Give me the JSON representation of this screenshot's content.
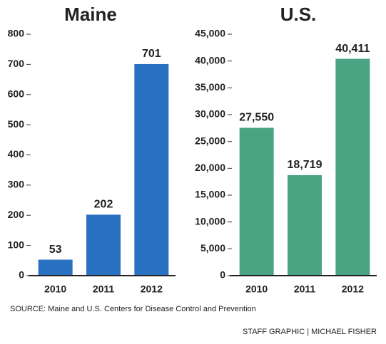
{
  "chart_data": [
    {
      "type": "bar",
      "title": "Maine",
      "categories": [
        "2010",
        "2011",
        "2012"
      ],
      "values": [
        53,
        202,
        701
      ],
      "color": "#2a72c1",
      "ylim": [
        0,
        800
      ],
      "yticks": [
        0,
        100,
        200,
        300,
        400,
        500,
        600,
        700,
        800
      ]
    },
    {
      "type": "bar",
      "title": "U.S.",
      "categories": [
        "2010",
        "2011",
        "2012"
      ],
      "values": [
        27550,
        18719,
        40411
      ],
      "value_labels": [
        "27,550",
        "18,719",
        "40,411"
      ],
      "color": "#4aa383",
      "ylim": [
        0,
        45000
      ],
      "yticks": [
        0,
        {
          "value": 5000,
          "label": "5,000"
        },
        {
          "value": 10000,
          "label": "10,000"
        },
        {
          "value": 15000,
          "label": "15,000"
        },
        {
          "value": 20000,
          "label": "20,000"
        },
        {
          "value": 25000,
          "label": "25,000"
        },
        {
          "value": 30000,
          "label": "30,000"
        },
        {
          "value": 35000,
          "label": "35,000"
        },
        {
          "value": 40000,
          "label": "40,000"
        },
        {
          "value": 45000,
          "label": "45,000"
        }
      ]
    }
  ],
  "source": {
    "label": "SOURCE:",
    "text": "Maine and U.S. Centers for Disease Control and Prevention"
  },
  "credit": "STAFF GRAPHIC | MICHAEL FISHER"
}
